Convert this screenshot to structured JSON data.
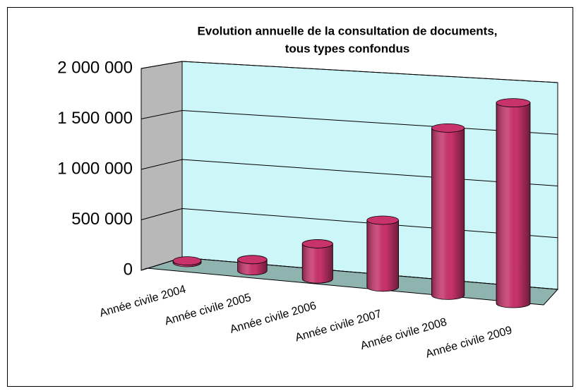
{
  "chart_data": {
    "type": "bar3d",
    "title": [
      "Evolution annuelle de la consultation de documents,",
      "tous types confondus"
    ],
    "categories": [
      "Année civile 2004",
      "Année civile 2005",
      "Année civile 2006",
      "Année civile 2007",
      "Année civile 2008",
      "Année civile 2009"
    ],
    "values": [
      15000,
      100000,
      315000,
      600000,
      1500000,
      1800000
    ],
    "color": "#c8336b",
    "ylim": [
      0,
      2000000
    ],
    "yticks": [
      0,
      {
        "value": 500000,
        "label": "500 000"
      },
      {
        "value": 1000000,
        "label": "1 000 000"
      },
      {
        "value": 1500000,
        "label": "1 500 000"
      },
      {
        "value": 2000000,
        "label": "2 000 000"
      }
    ],
    "grid": true
  }
}
